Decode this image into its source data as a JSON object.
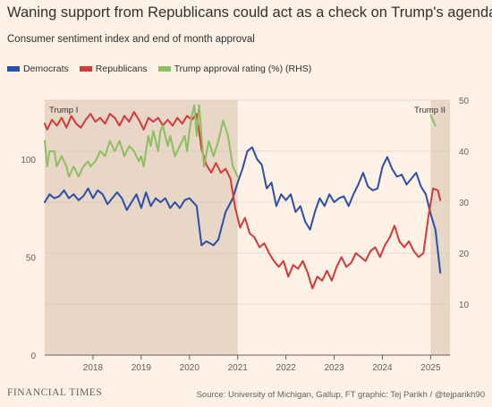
{
  "title": "Waning support from Republicans could act as a check on Trump's agenda",
  "subtitle": "Consumer sentiment index and end of month approval",
  "footer": {
    "brand": "FINANCIAL TIMES",
    "source": "Source: University of Michigan, Gallup, FT graphic: Tej Parikh / @tejparikh90"
  },
  "chart_data": {
    "type": "line",
    "title": "Waning support from Republicans could act as a check on Trump's agenda",
    "subtitle": "Consumer sentiment index and end of month approval",
    "x_ticks": [
      "2018",
      "2019",
      "2020",
      "2021",
      "2022",
      "2023",
      "2024",
      "2025"
    ],
    "xlim": [
      2017.0,
      2025.4
    ],
    "y_left": {
      "ticks": [
        0,
        50,
        100
      ],
      "ylim": [
        0,
        130
      ]
    },
    "y_right": {
      "ticks": [
        10,
        20,
        30,
        40,
        50
      ],
      "ylim": [
        0,
        50
      ],
      "label": "RHS"
    },
    "shaded_periods": [
      {
        "label": "Trump I",
        "start": 2017.0,
        "end": 2021.0
      },
      {
        "label": "Trump II",
        "start": 2025.0,
        "end": 2025.4
      }
    ],
    "grid": "horizontal",
    "legend_position": "top-left",
    "series": [
      {
        "name": "Democrats",
        "axis": "left",
        "color": "#2B4FA8",
        "points": [
          [
            2017.0,
            78
          ],
          [
            2017.1,
            82
          ],
          [
            2017.2,
            80
          ],
          [
            2017.3,
            81
          ],
          [
            2017.4,
            84
          ],
          [
            2017.5,
            80
          ],
          [
            2017.6,
            82
          ],
          [
            2017.7,
            79
          ],
          [
            2017.8,
            81
          ],
          [
            2017.9,
            85
          ],
          [
            2018.0,
            80
          ],
          [
            2018.1,
            84
          ],
          [
            2018.2,
            82
          ],
          [
            2018.3,
            77
          ],
          [
            2018.4,
            80
          ],
          [
            2018.5,
            83
          ],
          [
            2018.6,
            80
          ],
          [
            2018.7,
            74
          ],
          [
            2018.8,
            78
          ],
          [
            2018.9,
            82
          ],
          [
            2019.0,
            75
          ],
          [
            2019.1,
            83
          ],
          [
            2019.2,
            76
          ],
          [
            2019.3,
            80
          ],
          [
            2019.4,
            78
          ],
          [
            2019.5,
            80
          ],
          [
            2019.6,
            75
          ],
          [
            2019.7,
            78
          ],
          [
            2019.8,
            75
          ],
          [
            2019.9,
            79
          ],
          [
            2020.0,
            80
          ],
          [
            2020.15,
            76
          ],
          [
            2020.25,
            56
          ],
          [
            2020.35,
            58
          ],
          [
            2020.5,
            56
          ],
          [
            2020.6,
            59
          ],
          [
            2020.75,
            73
          ],
          [
            2020.9,
            80
          ],
          [
            2021.0,
            88
          ],
          [
            2021.1,
            95
          ],
          [
            2021.2,
            104
          ],
          [
            2021.3,
            106
          ],
          [
            2021.4,
            100
          ],
          [
            2021.5,
            97
          ],
          [
            2021.6,
            85
          ],
          [
            2021.7,
            88
          ],
          [
            2021.8,
            76
          ],
          [
            2021.9,
            82
          ],
          [
            2022.0,
            79
          ],
          [
            2022.1,
            82
          ],
          [
            2022.2,
            73
          ],
          [
            2022.3,
            76
          ],
          [
            2022.4,
            68
          ],
          [
            2022.5,
            64
          ],
          [
            2022.6,
            73
          ],
          [
            2022.7,
            80
          ],
          [
            2022.8,
            76
          ],
          [
            2022.9,
            82
          ],
          [
            2023.0,
            78
          ],
          [
            2023.1,
            80
          ],
          [
            2023.2,
            81
          ],
          [
            2023.3,
            76
          ],
          [
            2023.4,
            82
          ],
          [
            2023.5,
            87
          ],
          [
            2023.6,
            93
          ],
          [
            2023.7,
            86
          ],
          [
            2023.8,
            84
          ],
          [
            2023.9,
            85
          ],
          [
            2024.0,
            96
          ],
          [
            2024.1,
            101
          ],
          [
            2024.2,
            95
          ],
          [
            2024.3,
            91
          ],
          [
            2024.4,
            92
          ],
          [
            2024.5,
            87
          ],
          [
            2024.6,
            90
          ],
          [
            2024.7,
            93
          ],
          [
            2024.8,
            86
          ],
          [
            2024.9,
            82
          ],
          [
            2025.0,
            72
          ],
          [
            2025.1,
            64
          ],
          [
            2025.2,
            42
          ]
        ]
      },
      {
        "name": "Republicans",
        "axis": "left",
        "color": "#D33A3A",
        "points": [
          [
            2017.0,
            118
          ],
          [
            2017.05,
            115
          ],
          [
            2017.15,
            120
          ],
          [
            2017.25,
            117
          ],
          [
            2017.35,
            121
          ],
          [
            2017.45,
            116
          ],
          [
            2017.55,
            122
          ],
          [
            2017.65,
            118
          ],
          [
            2017.75,
            116
          ],
          [
            2017.85,
            120
          ],
          [
            2017.95,
            123
          ],
          [
            2018.05,
            119
          ],
          [
            2018.15,
            121
          ],
          [
            2018.25,
            118
          ],
          [
            2018.35,
            123
          ],
          [
            2018.45,
            121
          ],
          [
            2018.55,
            117
          ],
          [
            2018.65,
            122
          ],
          [
            2018.75,
            119
          ],
          [
            2018.85,
            124
          ],
          [
            2018.95,
            120
          ],
          [
            2019.05,
            115
          ],
          [
            2019.15,
            121
          ],
          [
            2019.25,
            119
          ],
          [
            2019.35,
            121
          ],
          [
            2019.45,
            117
          ],
          [
            2019.55,
            120
          ],
          [
            2019.65,
            117
          ],
          [
            2019.75,
            121
          ],
          [
            2019.85,
            118
          ],
          [
            2019.95,
            122
          ],
          [
            2020.05,
            120
          ],
          [
            2020.15,
            123
          ],
          [
            2020.25,
            105
          ],
          [
            2020.35,
            97
          ],
          [
            2020.45,
            93
          ],
          [
            2020.55,
            98
          ],
          [
            2020.65,
            93
          ],
          [
            2020.75,
            95
          ],
          [
            2020.85,
            90
          ],
          [
            2020.95,
            75
          ],
          [
            2021.05,
            65
          ],
          [
            2021.15,
            70
          ],
          [
            2021.25,
            62
          ],
          [
            2021.35,
            60
          ],
          [
            2021.45,
            55
          ],
          [
            2021.55,
            57
          ],
          [
            2021.65,
            52
          ],
          [
            2021.75,
            48
          ],
          [
            2021.85,
            45
          ],
          [
            2021.95,
            48
          ],
          [
            2022.05,
            40
          ],
          [
            2022.15,
            46
          ],
          [
            2022.25,
            44
          ],
          [
            2022.35,
            48
          ],
          [
            2022.45,
            42
          ],
          [
            2022.55,
            34
          ],
          [
            2022.65,
            40
          ],
          [
            2022.75,
            38
          ],
          [
            2022.85,
            43
          ],
          [
            2022.95,
            38
          ],
          [
            2023.05,
            45
          ],
          [
            2023.15,
            50
          ],
          [
            2023.25,
            45
          ],
          [
            2023.35,
            47
          ],
          [
            2023.45,
            52
          ],
          [
            2023.55,
            50
          ],
          [
            2023.65,
            48
          ],
          [
            2023.75,
            53
          ],
          [
            2023.85,
            55
          ],
          [
            2023.95,
            50
          ],
          [
            2024.05,
            56
          ],
          [
            2024.15,
            60
          ],
          [
            2024.25,
            66
          ],
          [
            2024.35,
            58
          ],
          [
            2024.45,
            55
          ],
          [
            2024.55,
            58
          ],
          [
            2024.65,
            53
          ],
          [
            2024.75,
            50
          ],
          [
            2024.85,
            52
          ],
          [
            2024.95,
            70
          ],
          [
            2025.05,
            85
          ],
          [
            2025.15,
            84
          ],
          [
            2025.2,
            79
          ]
        ]
      },
      {
        "name": "Trump approval rating (%) (RHS)",
        "axis": "right",
        "color": "#8DBE5F",
        "points": [
          [
            2017.0,
            42
          ],
          [
            2017.05,
            37
          ],
          [
            2017.1,
            40
          ],
          [
            2017.2,
            40
          ],
          [
            2017.25,
            37
          ],
          [
            2017.35,
            39
          ],
          [
            2017.45,
            37
          ],
          [
            2017.5,
            35
          ],
          [
            2017.6,
            37
          ],
          [
            2017.7,
            35
          ],
          [
            2017.8,
            37
          ],
          [
            2017.9,
            38
          ],
          [
            2017.95,
            37
          ],
          [
            2018.05,
            38
          ],
          [
            2018.15,
            40
          ],
          [
            2018.25,
            39
          ],
          [
            2018.35,
            42
          ],
          [
            2018.45,
            40
          ],
          [
            2018.55,
            42
          ],
          [
            2018.65,
            39
          ],
          [
            2018.75,
            41
          ],
          [
            2018.85,
            40
          ],
          [
            2018.95,
            38
          ],
          [
            2019.0,
            39
          ],
          [
            2019.05,
            37
          ],
          [
            2019.1,
            40
          ],
          [
            2019.15,
            43
          ],
          [
            2019.2,
            41
          ],
          [
            2019.25,
            44
          ],
          [
            2019.3,
            42
          ],
          [
            2019.35,
            40
          ],
          [
            2019.4,
            44
          ],
          [
            2019.45,
            45
          ],
          [
            2019.55,
            41
          ],
          [
            2019.6,
            43
          ],
          [
            2019.7,
            39
          ],
          [
            2019.8,
            41
          ],
          [
            2019.9,
            43
          ],
          [
            2019.95,
            40
          ],
          [
            2020.0,
            44
          ],
          [
            2020.05,
            47
          ],
          [
            2020.1,
            49
          ],
          [
            2020.15,
            43
          ],
          [
            2020.2,
            49
          ],
          [
            2020.25,
            43
          ],
          [
            2020.3,
            37
          ],
          [
            2020.4,
            42
          ],
          [
            2020.5,
            39
          ],
          [
            2020.6,
            42
          ],
          [
            2020.7,
            46
          ],
          [
            2020.8,
            43
          ],
          [
            2020.9,
            37
          ],
          [
            2021.0,
            35
          ]
        ]
      },
      {
        "name": "Trump approval rating (%) (RHS)",
        "axis": "right",
        "color": "#8DBE5F",
        "points": [
          [
            2025.0,
            47
          ],
          [
            2025.1,
            45
          ]
        ]
      }
    ]
  }
}
